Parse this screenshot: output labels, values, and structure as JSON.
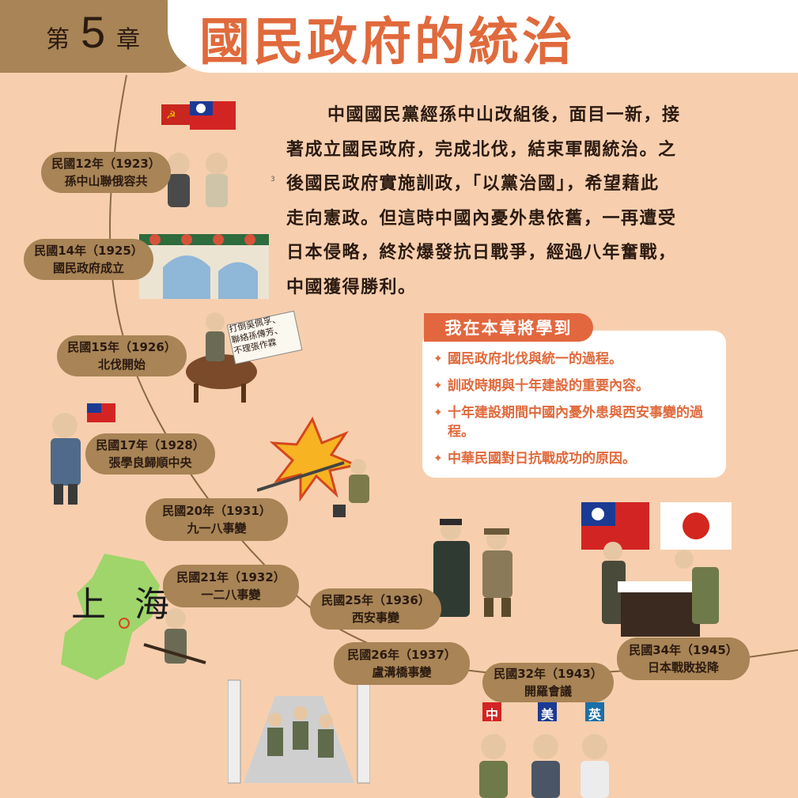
{
  "header": {
    "chapter_prefix": "第",
    "chapter_number": "5",
    "chapter_suffix": "章",
    "title": "國民政府的統治"
  },
  "intro": {
    "line_number": "3",
    "lines": [
      "中國國民黨經孫中山改組後，面目一新，接",
      "著成立國民政府，完成北伐，結束軍閥統治。之",
      "後國民政府實施訓政，「以黨治國」，希望藉此",
      "走向憲政。但這時中國內憂外患依舊，一再遭受",
      "日本侵略，終於爆發抗日戰爭，經過八年奮戰，",
      "中國獲得勝利。"
    ]
  },
  "learn": {
    "title": "我在本章將學到",
    "bullet": "✦",
    "items": [
      "國民政府北伐與統一的過程。",
      "訓政時期與十年建設的重要內容。",
      "十年建設期間中國內憂外患與西安事變的過程。",
      "中華民國對日抗戰成功的原因。"
    ]
  },
  "timeline": [
    {
      "year": "民國12年（1923）",
      "event": "孫中山聯俄容共"
    },
    {
      "year": "民國14年（1925）",
      "event": "國民政府成立"
    },
    {
      "year": "民國15年（1926）",
      "event": "北伐開始"
    },
    {
      "year": "民國17年（1928）",
      "event": "張學良歸順中央"
    },
    {
      "year": "民國20年（1931）",
      "event": "九一八事變"
    },
    {
      "year": "民國21年（1932）",
      "event": "一二八事變"
    },
    {
      "year": "民國25年（1936）",
      "event": "西安事變"
    },
    {
      "year": "民國26年（1937）",
      "event": "盧溝橋事變"
    },
    {
      "year": "民國32年（1943）",
      "event": "開羅會議"
    },
    {
      "year": "民國34年（1945）",
      "event": "日本戰敗投降"
    }
  ],
  "illustrations": {
    "northern_sign": "打倒吳佩孚、聯絡孫傳芳、不理張作霖",
    "shanghai_label": "上海",
    "cairo_flags": [
      "中",
      "美",
      "英"
    ]
  },
  "colors": {
    "background": "#f7cfae",
    "accent": "#e06a3c",
    "pill": "#a88456"
  }
}
